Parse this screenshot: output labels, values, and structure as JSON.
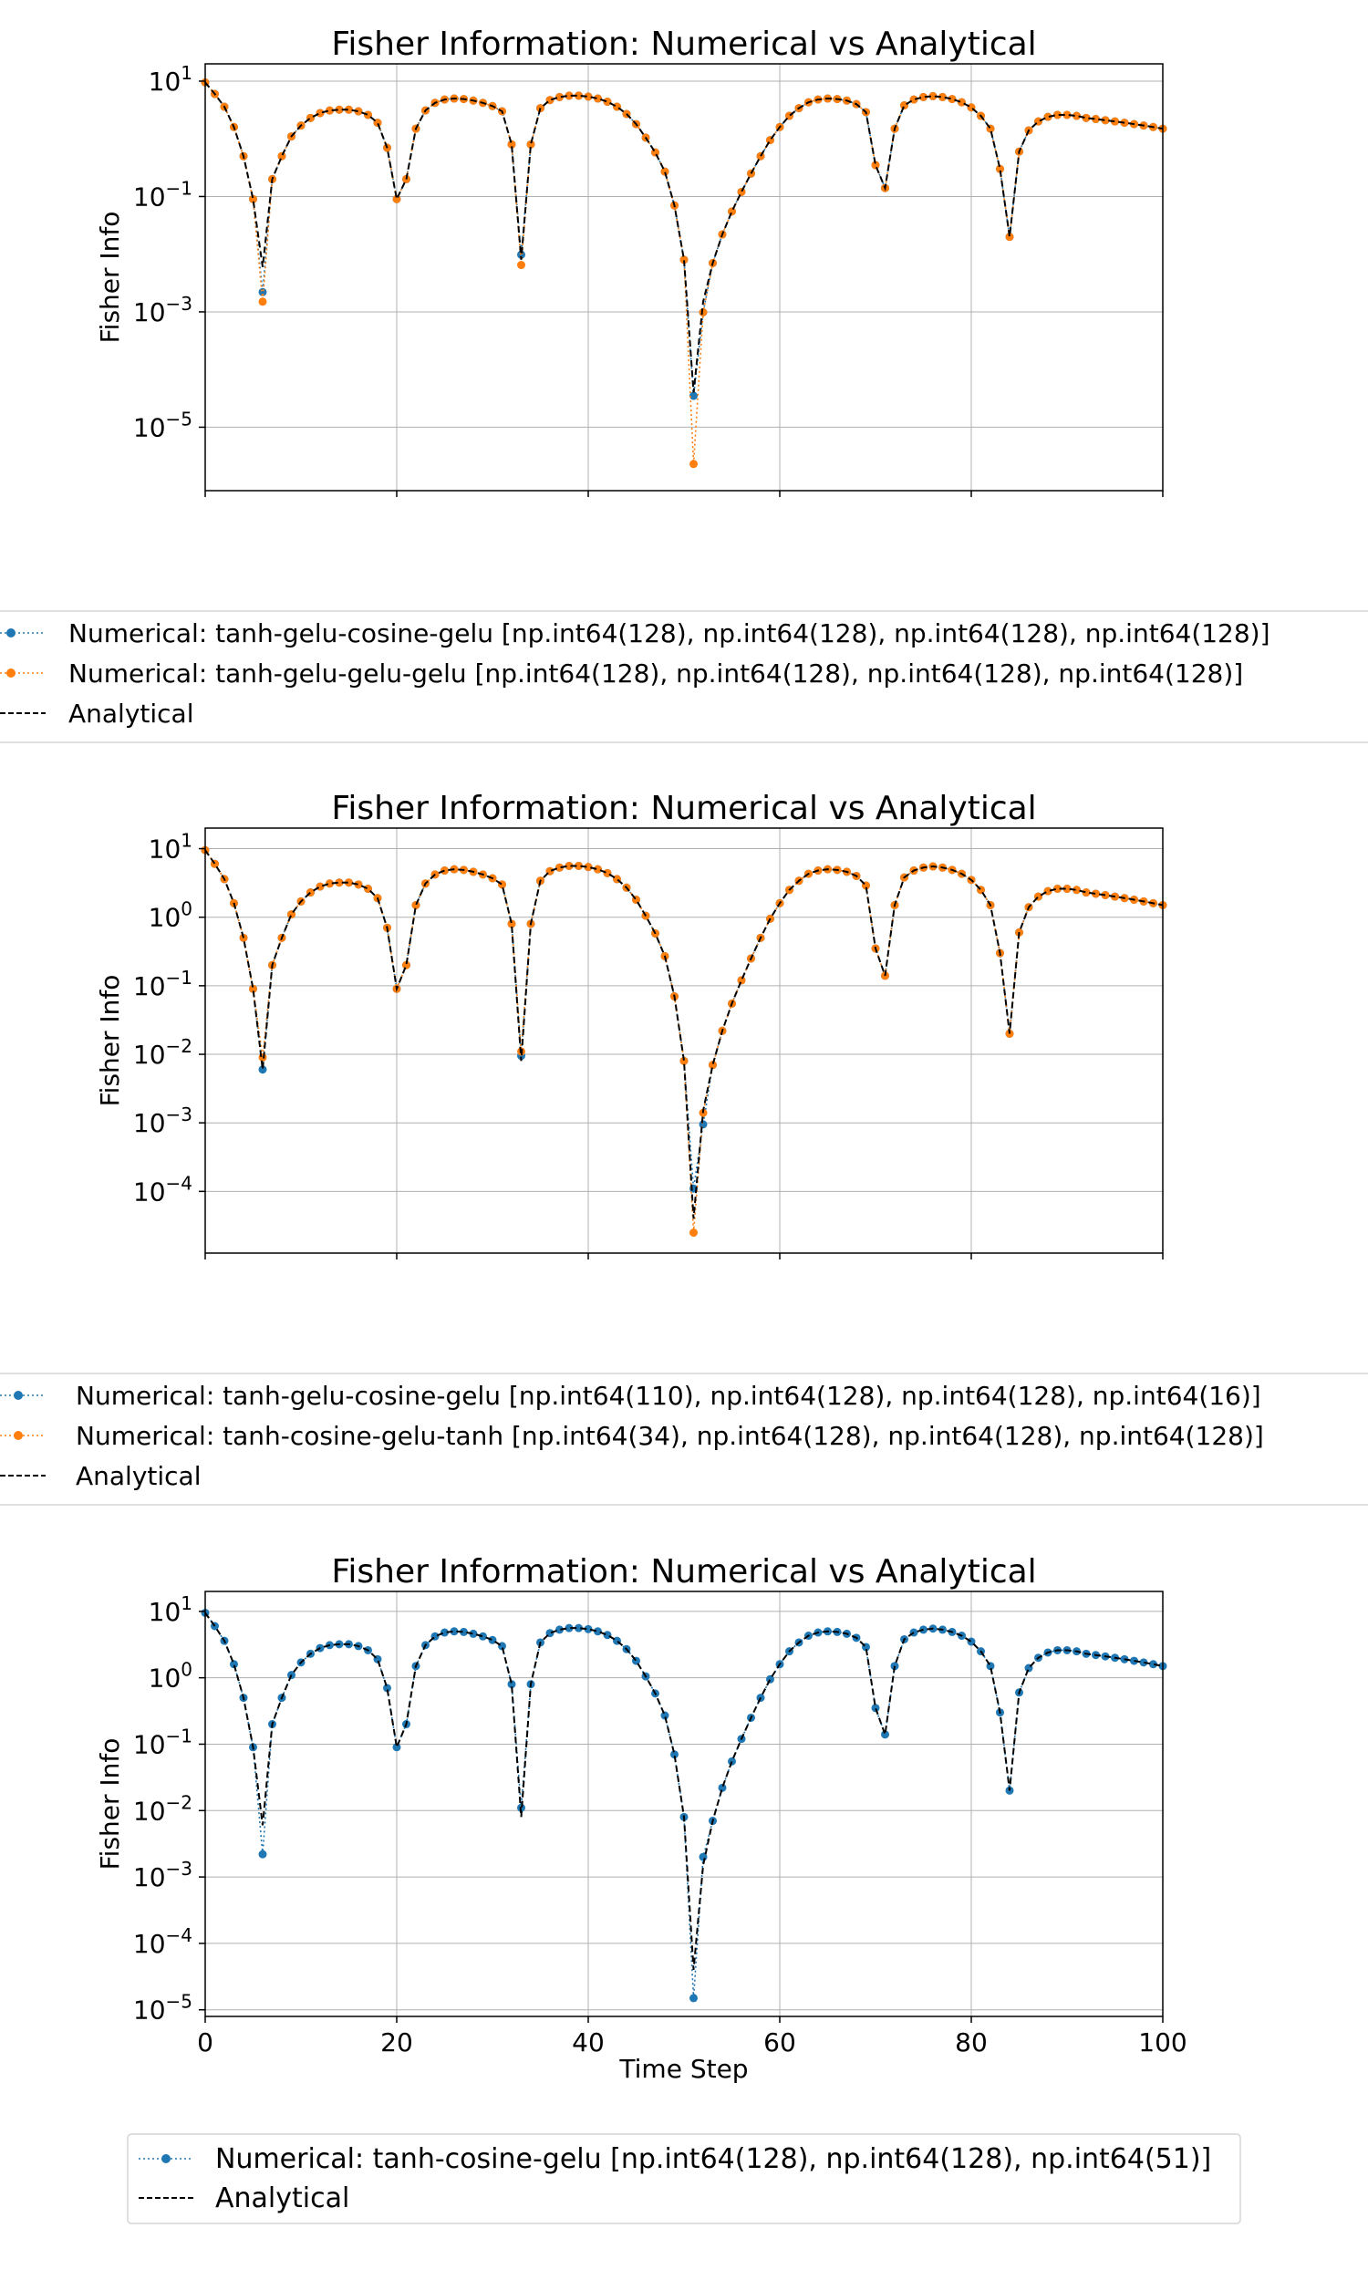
{
  "chart_data": [
    {
      "type": "line",
      "title": "Fisher Information: Numerical vs Analytical",
      "xlabel": "",
      "ylabel": "Fisher Info",
      "yscale": "log",
      "xlim": [
        0,
        100
      ],
      "ylim_log10": [
        -6.1,
        1.3
      ],
      "y_tick_labels": [
        "10",
        "10",
        "10",
        "10"
      ],
      "y_tick_exponents": [
        "1",
        "−1",
        "−3",
        "−5"
      ],
      "x_tick_labels": [],
      "grid": true,
      "legend_placement": "below",
      "series": [
        {
          "name": "Numerical: tanh-gelu-cosine-gelu [np.int64(128), np.int64(128), np.int64(128), np.int64(128)]",
          "color": "#1f77b4",
          "style": "dotted-marker",
          "min_overrides": {
            "6": 0.0022,
            "33": 0.0098,
            "51": 3.5e-05,
            "52": 0.00098
          }
        },
        {
          "name": "Numerical: tanh-gelu-gelu-gelu [np.int64(128), np.int64(128), np.int64(128), np.int64(128)]",
          "color": "#ff7f0e",
          "style": "dotted-marker",
          "min_overrides": {
            "6": 0.0015,
            "33": 0.0065,
            "51": 2.3e-06,
            "52": 0.00098
          }
        },
        {
          "name": "Analytical",
          "color": "#000000",
          "style": "dashed"
        }
      ]
    },
    {
      "type": "line",
      "title": "Fisher Information: Numerical vs Analytical",
      "xlabel": "",
      "ylabel": "Fisher Info",
      "yscale": "log",
      "xlim": [
        0,
        100
      ],
      "ylim_log10": [
        -4.9,
        1.3
      ],
      "y_tick_labels": [
        "10",
        "10",
        "10",
        "10",
        "10",
        "10"
      ],
      "y_tick_exponents": [
        "1",
        "0",
        "−1",
        "−2",
        "−3",
        "−4"
      ],
      "x_tick_labels": [],
      "grid": true,
      "legend_placement": "below",
      "series": [
        {
          "name": "Numerical: tanh-gelu-cosine-gelu [np.int64(110), np.int64(128), np.int64(128), np.int64(16)]",
          "color": "#1f77b4",
          "style": "dotted-marker",
          "min_overrides": {
            "6": 0.006,
            "33": 0.0095,
            "51": 0.00011,
            "52": 0.00095
          }
        },
        {
          "name": "Numerical: tanh-cosine-gelu-tanh [np.int64(34), np.int64(128), np.int64(128), np.int64(128)]",
          "color": "#ff7f0e",
          "style": "dotted-marker",
          "min_overrides": {
            "6": 0.009,
            "33": 0.011,
            "51": 2.5e-05,
            "52": 0.0014
          }
        },
        {
          "name": "Analytical",
          "color": "#000000",
          "style": "dashed"
        }
      ]
    },
    {
      "type": "line",
      "title": "Fisher Information: Numerical vs Analytical",
      "xlabel": "Time Step",
      "ylabel": "Fisher Info",
      "yscale": "log",
      "xlim": [
        0,
        100
      ],
      "ylim_log10": [
        -5.1,
        1.3
      ],
      "y_tick_labels": [
        "10",
        "10",
        "10",
        "10",
        "10",
        "10",
        "10"
      ],
      "y_tick_exponents": [
        "1",
        "0",
        "−1",
        "−2",
        "−3",
        "−4",
        "−5"
      ],
      "x_tick_labels": [
        "0",
        "20",
        "40",
        "60",
        "80",
        "100"
      ],
      "grid": true,
      "legend_placement": "below",
      "series": [
        {
          "name": "Numerical: tanh-cosine-gelu [np.int64(128), np.int64(128), np.int64(51)]",
          "color": "#1f77b4",
          "style": "dotted-marker",
          "min_overrides": {
            "6": 0.0022,
            "33": 0.011,
            "51": 1.5e-05,
            "52": 0.002
          }
        },
        {
          "name": "Analytical",
          "color": "#000000",
          "style": "dashed"
        }
      ]
    }
  ],
  "shared_curve": {
    "step_values": [
      9.5,
      6.0,
      3.6,
      1.6,
      0.5,
      0.09,
      0.006,
      0.2,
      0.5,
      1.1,
      1.7,
      2.3,
      2.8,
      3.1,
      3.2,
      3.2,
      3.0,
      2.6,
      1.9,
      0.7,
      0.09,
      0.2,
      1.5,
      3.1,
      4.2,
      4.8,
      5.0,
      4.9,
      4.6,
      4.2,
      3.7,
      3.0,
      0.8,
      0.008,
      0.8,
      3.4,
      4.7,
      5.3,
      5.6,
      5.6,
      5.4,
      5.0,
      4.4,
      3.6,
      2.7,
      1.8,
      1.05,
      0.58,
      0.27,
      0.07,
      0.008,
      4e-05,
      0.0015,
      0.007,
      0.022,
      0.055,
      0.12,
      0.25,
      0.5,
      0.95,
      1.6,
      2.5,
      3.4,
      4.3,
      4.8,
      5.0,
      4.9,
      4.6,
      4.0,
      2.9,
      0.35,
      0.14,
      1.5,
      3.8,
      4.8,
      5.3,
      5.5,
      5.3,
      4.9,
      4.3,
      3.5,
      2.5,
      1.5,
      0.3,
      0.02,
      0.6,
      1.4,
      2.0,
      2.4,
      2.6,
      2.6,
      2.5,
      2.3,
      2.2,
      2.1,
      2.0,
      1.9,
      1.8,
      1.7,
      1.6,
      1.5
    ]
  }
}
